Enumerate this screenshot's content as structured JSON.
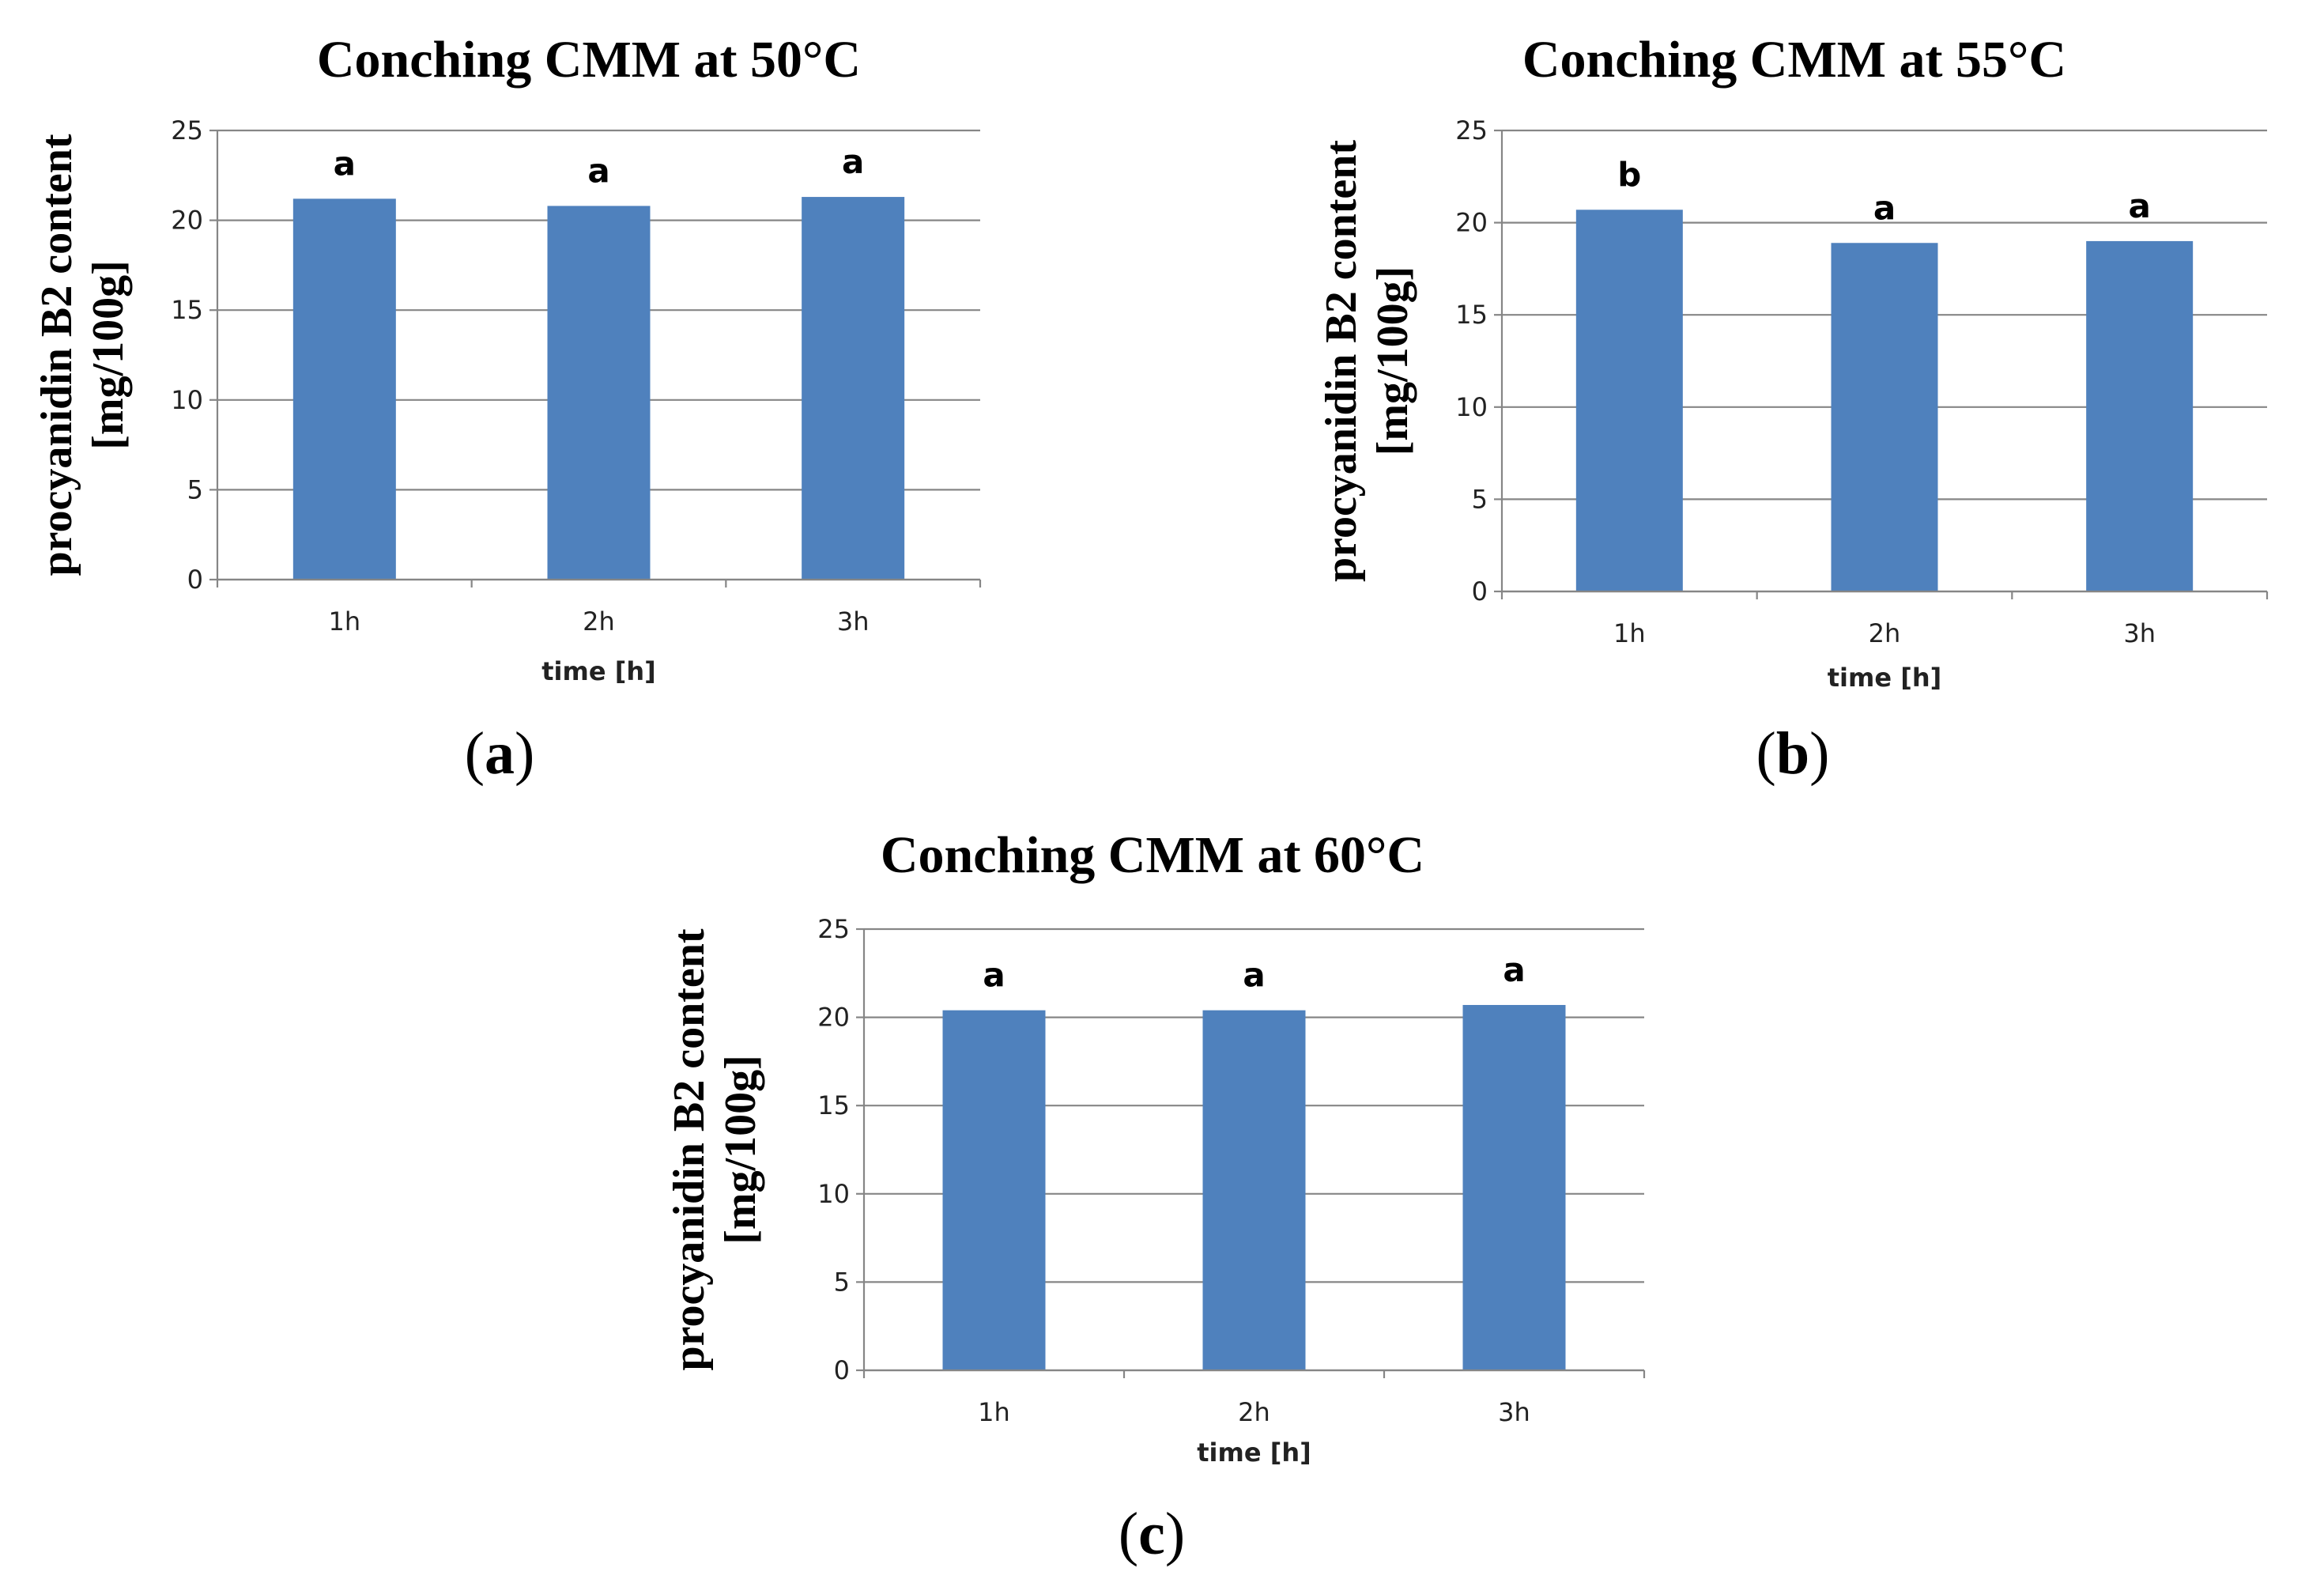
{
  "colors": {
    "bar": "#4f81bd",
    "grid": "#868686",
    "axis": "#868686"
  },
  "chart_data": [
    {
      "type": "bar",
      "panel": "a",
      "title": "Conching CMM at 50°C",
      "ylabel_line1": "procyanidin B2 content",
      "ylabel_line2": "[mg/100g]",
      "xlabel": "time [h]",
      "categories": [
        "1h",
        "2h",
        "3h"
      ],
      "values": [
        21.2,
        20.8,
        21.3
      ],
      "significance": [
        "a",
        "a",
        "a"
      ],
      "ylim": [
        0,
        25
      ],
      "yticks": [
        0,
        5,
        10,
        15,
        20,
        25
      ],
      "grid": true
    },
    {
      "type": "bar",
      "panel": "b",
      "title": "Conching CMM at 55°C",
      "ylabel_line1": "procyanidin B2 content",
      "ylabel_line2": "[mg/100g]",
      "xlabel": "time [h]",
      "categories": [
        "1h",
        "2h",
        "3h"
      ],
      "values": [
        20.7,
        18.9,
        19.0
      ],
      "significance": [
        "b",
        "a",
        "a"
      ],
      "ylim": [
        0,
        25
      ],
      "yticks": [
        0,
        5,
        10,
        15,
        20,
        25
      ],
      "grid": true
    },
    {
      "type": "bar",
      "panel": "c",
      "title": "Conching CMM at 60°C",
      "ylabel_line1": "procyanidin B2 content",
      "ylabel_line2": "[mg/100g]",
      "xlabel": "time [h]",
      "categories": [
        "1h",
        "2h",
        "3h"
      ],
      "values": [
        20.4,
        20.4,
        20.7
      ],
      "significance": [
        "a",
        "a",
        "a"
      ],
      "ylim": [
        0,
        25
      ],
      "yticks": [
        0,
        5,
        10,
        15,
        20,
        25
      ],
      "grid": true
    }
  ]
}
